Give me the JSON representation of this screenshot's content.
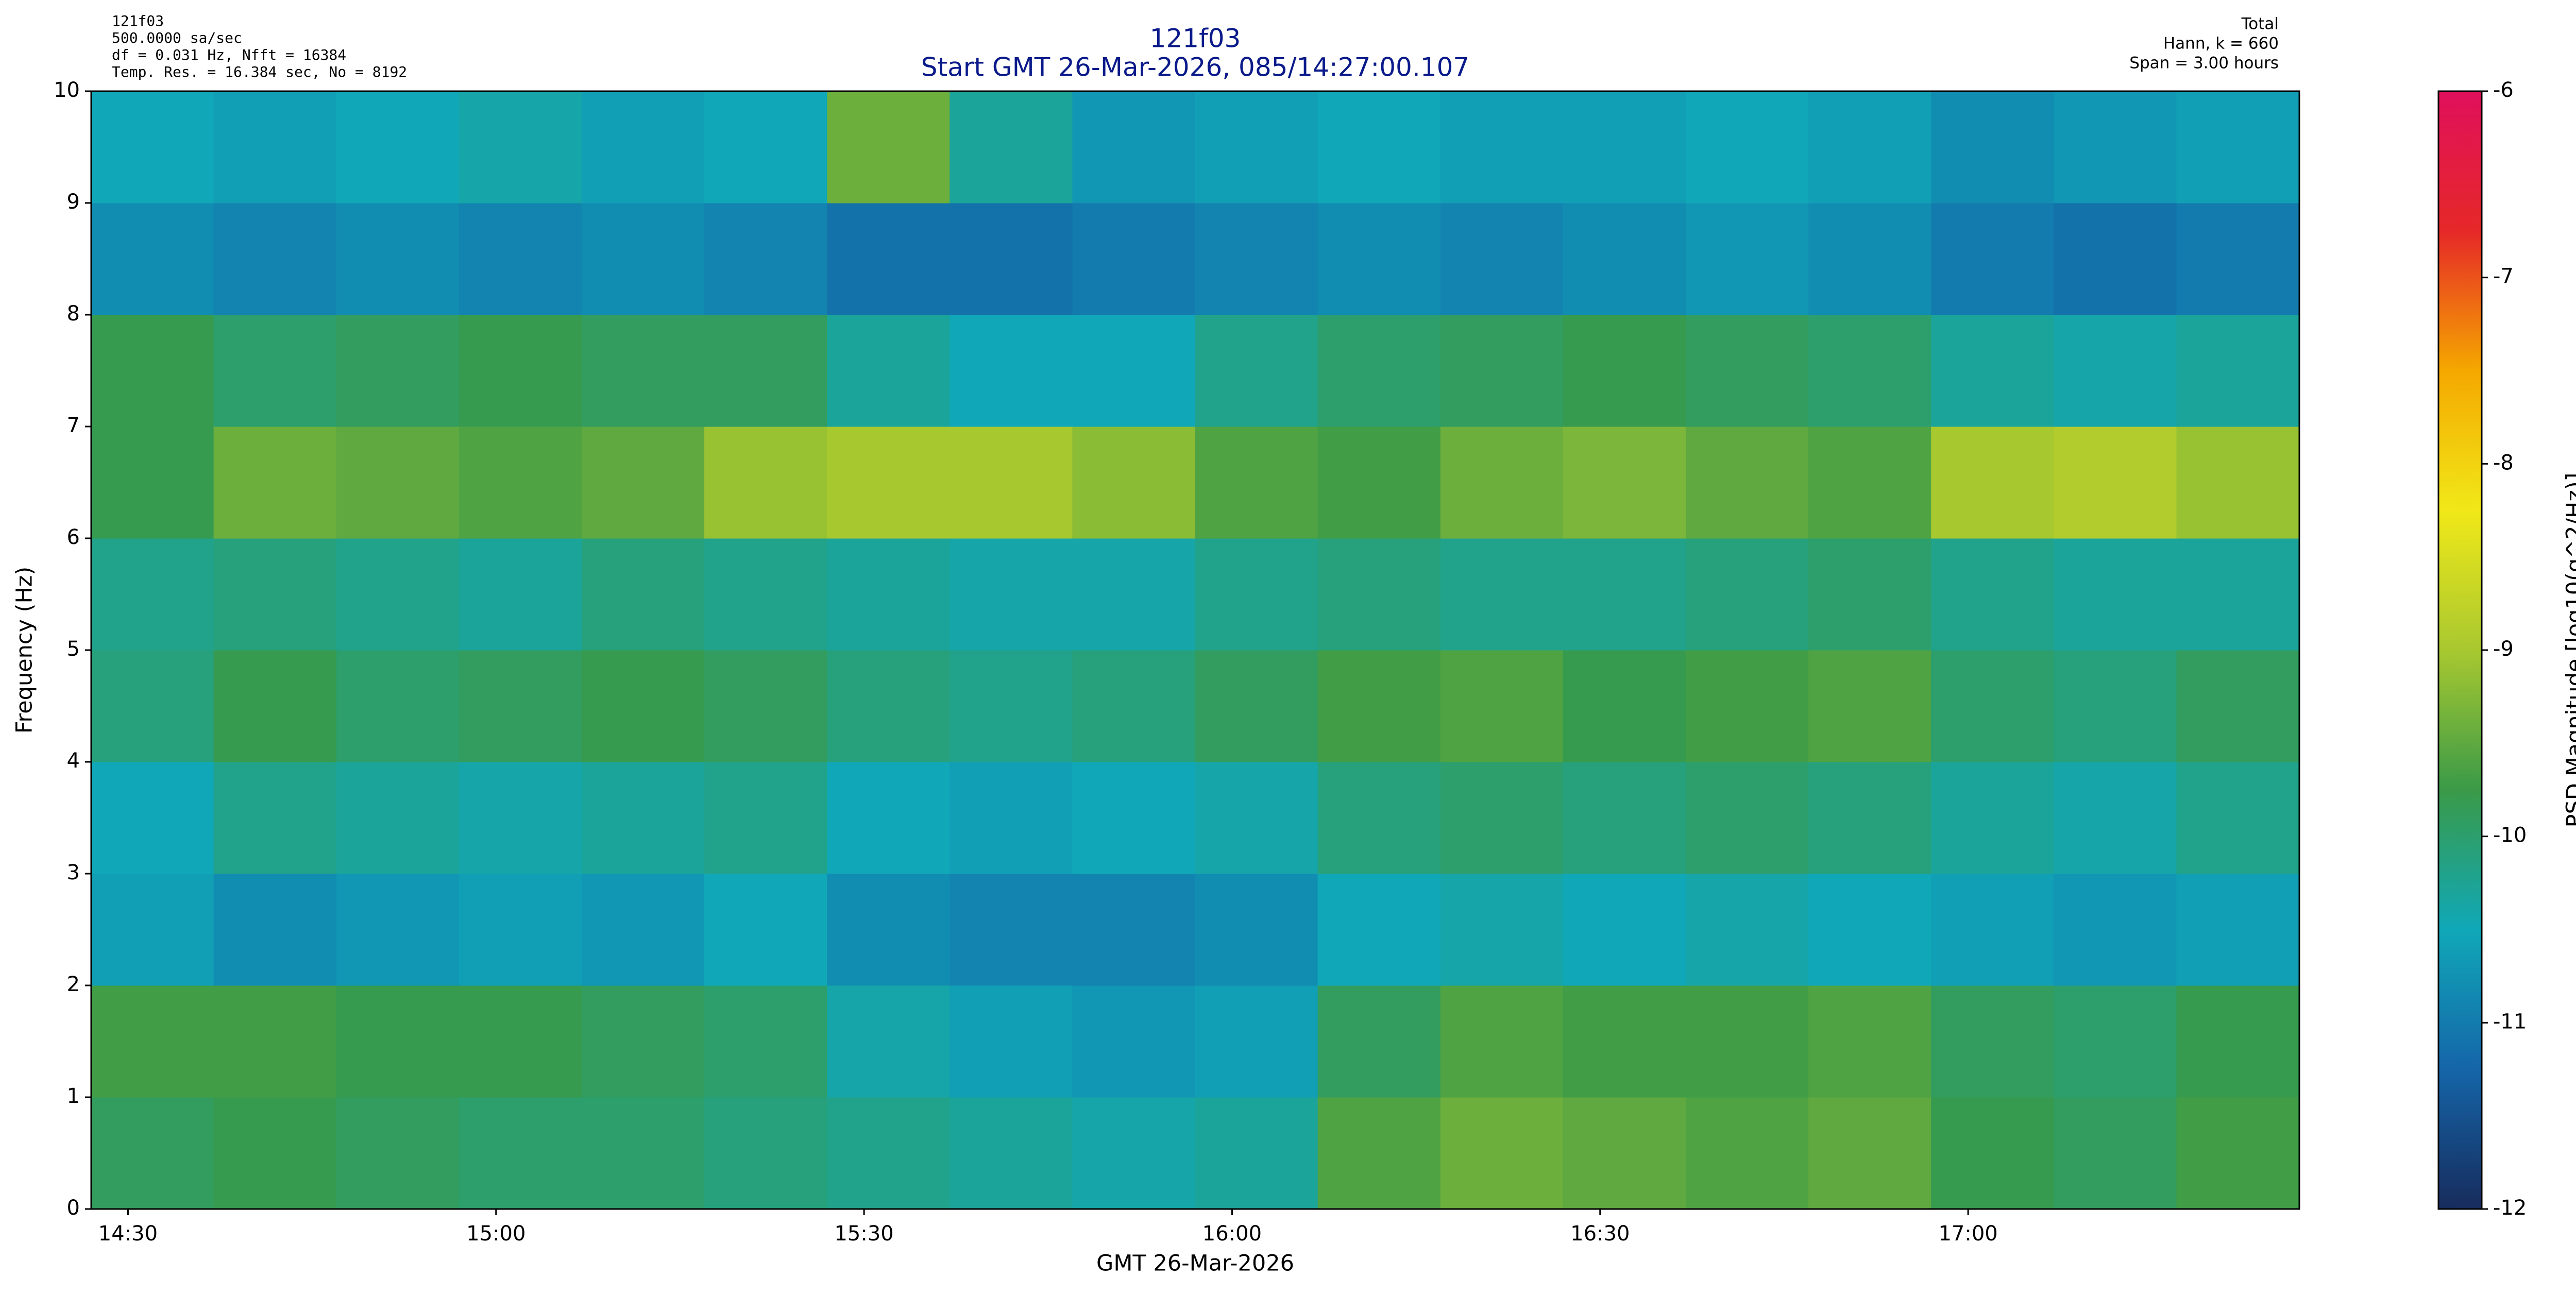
{
  "chart_data": {
    "type": "heatmap",
    "title": "121f03",
    "subtitle": "Start GMT 26-Mar-2026, 085/14:27:00.107",
    "info_left": [
      "121f03",
      "500.0000 sa/sec",
      "df = 0.031 Hz,  Nfft = 16384",
      "Temp. Res. = 16.384 sec, No = 8192"
    ],
    "info_right": [
      "Total",
      "Hann, k = 660",
      "Span = 3.00 hours"
    ],
    "x_label": "GMT 26-Mar-2026",
    "y_label": "Frequency (Hz)",
    "colorbar_label": "PSD Magnitude [log10(g^2/Hz)]",
    "xlim": [
      "14:27:00",
      "17:27:00"
    ],
    "xticks": [
      "14:30",
      "15:00",
      "15:30",
      "16:00",
      "16:30",
      "17:00"
    ],
    "ylim": [
      0,
      10
    ],
    "yticks": [
      0,
      1,
      2,
      3,
      4,
      5,
      6,
      7,
      8,
      9,
      10
    ],
    "clim": [
      -12,
      -6
    ],
    "cticks": [
      -12,
      -11,
      -10,
      -9,
      -8,
      -7,
      -6
    ],
    "colormap": [
      "#172c5c",
      "#1565a8",
      "#10a8b8",
      "#3a9a48",
      "#a8c830",
      "#f0e818",
      "#f5a800",
      "#e62828",
      "#e0105c"
    ],
    "x": [
      "14:32",
      "14:42",
      "14:52",
      "15:02",
      "15:12",
      "15:22",
      "15:32",
      "15:42",
      "15:52",
      "16:02",
      "16:12",
      "16:22",
      "16:32",
      "16:42",
      "16:52",
      "17:02",
      "17:12",
      "17:22"
    ],
    "y": [
      0.5,
      1.5,
      2.5,
      3.5,
      4.5,
      5.5,
      6.5,
      7.5,
      8.5,
      9.5
    ],
    "values": [
      [
        -9.9,
        -9.8,
        -9.9,
        -10.0,
        -10.0,
        -10.1,
        -10.2,
        -10.3,
        -10.4,
        -10.3,
        -9.6,
        -9.4,
        -9.5,
        -9.6,
        -9.5,
        -9.8,
        -9.9,
        -9.7
      ],
      [
        -9.7,
        -9.7,
        -9.8,
        -9.8,
        -9.9,
        -10.0,
        -10.4,
        -10.6,
        -10.7,
        -10.6,
        -9.9,
        -9.6,
        -9.7,
        -9.7,
        -9.6,
        -9.9,
        -10.0,
        -9.8
      ],
      [
        -10.6,
        -10.8,
        -10.7,
        -10.6,
        -10.7,
        -10.5,
        -10.8,
        -10.9,
        -10.9,
        -10.8,
        -10.5,
        -10.4,
        -10.5,
        -10.4,
        -10.5,
        -10.6,
        -10.7,
        -10.6
      ],
      [
        -10.5,
        -10.2,
        -10.3,
        -10.4,
        -10.3,
        -10.2,
        -10.5,
        -10.6,
        -10.5,
        -10.4,
        -10.1,
        -10.0,
        -10.1,
        -10.0,
        -10.1,
        -10.3,
        -10.4,
        -10.2
      ],
      [
        -10.1,
        -9.8,
        -10.0,
        -9.9,
        -9.8,
        -9.9,
        -10.1,
        -10.2,
        -10.1,
        -9.9,
        -9.7,
        -9.6,
        -9.8,
        -9.7,
        -9.6,
        -10.0,
        -10.1,
        -9.9
      ],
      [
        -10.2,
        -10.1,
        -10.2,
        -10.3,
        -10.1,
        -10.2,
        -10.3,
        -10.4,
        -10.4,
        -10.2,
        -10.1,
        -10.2,
        -10.2,
        -10.1,
        -10.0,
        -10.2,
        -10.3,
        -10.3
      ],
      [
        -9.8,
        -9.4,
        -9.5,
        -9.6,
        -9.5,
        -9.1,
        -9.0,
        -9.0,
        -9.2,
        -9.6,
        -9.7,
        -9.4,
        -9.3,
        -9.5,
        -9.6,
        -9.0,
        -8.9,
        -9.1
      ],
      [
        -9.8,
        -10.0,
        -9.9,
        -9.8,
        -9.9,
        -9.9,
        -10.3,
        -10.5,
        -10.5,
        -10.2,
        -10.0,
        -9.9,
        -9.8,
        -9.9,
        -10.0,
        -10.3,
        -10.4,
        -10.3
      ],
      [
        -10.8,
        -10.9,
        -10.8,
        -10.9,
        -10.8,
        -10.9,
        -11.1,
        -11.1,
        -11.0,
        -10.9,
        -10.8,
        -10.9,
        -10.8,
        -10.7,
        -10.8,
        -11.0,
        -11.1,
        -11.0
      ],
      [
        -10.5,
        -10.6,
        -10.5,
        -10.4,
        -10.6,
        -10.5,
        -9.4,
        -10.3,
        -10.7,
        -10.6,
        -10.5,
        -10.6,
        -10.6,
        -10.5,
        -10.6,
        -10.8,
        -10.7,
        -10.6
      ]
    ]
  }
}
